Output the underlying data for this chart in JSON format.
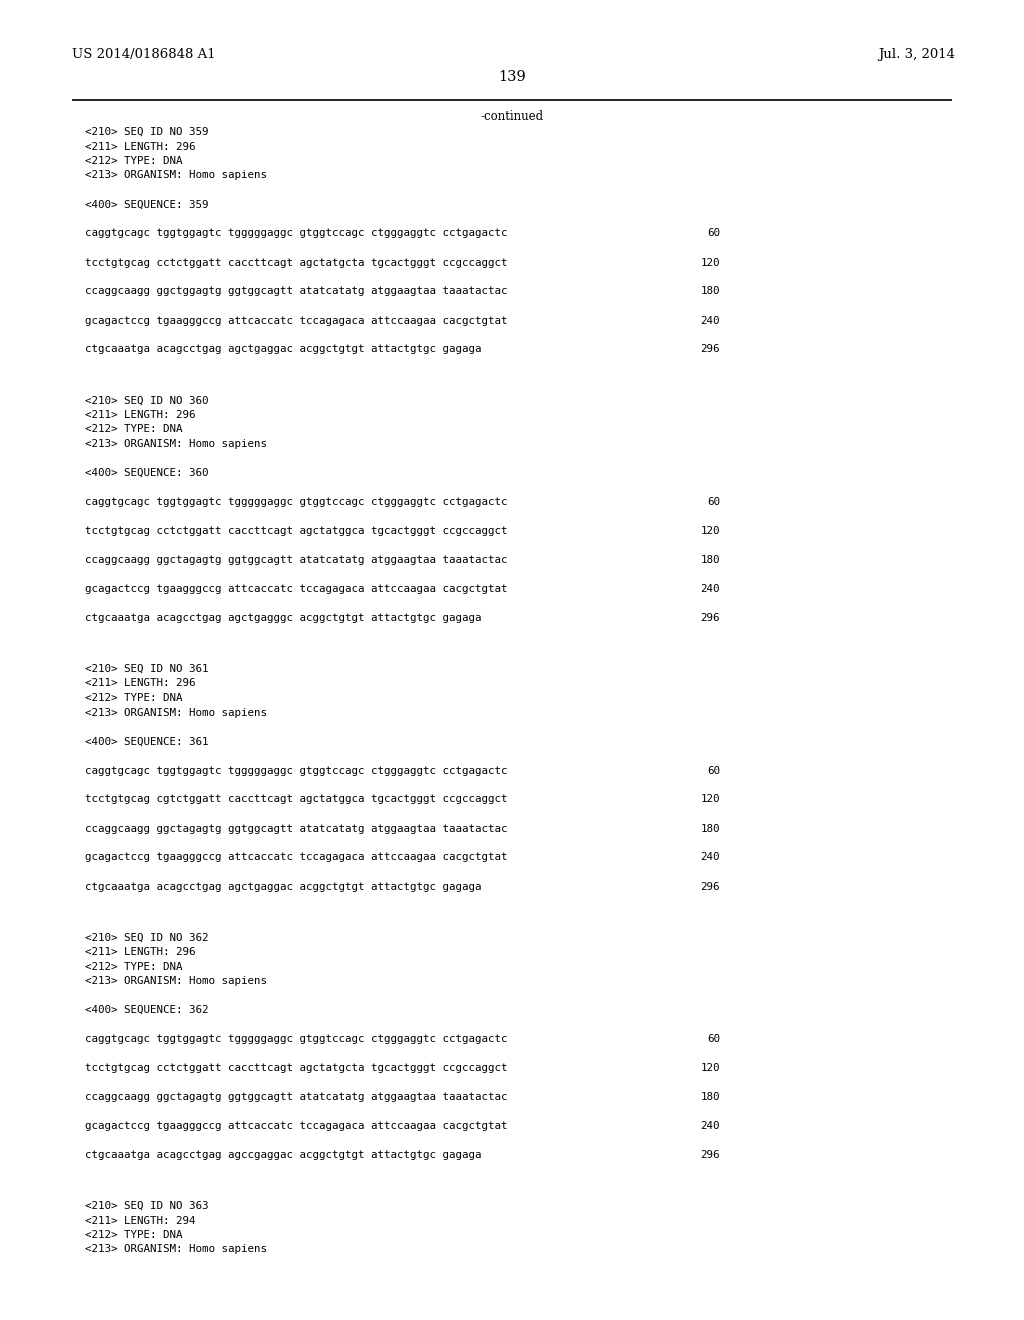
{
  "header_left": "US 2014/0186848 A1",
  "header_right": "Jul. 3, 2014",
  "page_number": "139",
  "continued_label": "-continued",
  "background_color": "#ffffff",
  "text_color": "#000000",
  "font_size_header": 9.5,
  "font_size_page": 10.5,
  "font_size_body": 7.8,
  "sections": [
    {
      "meta": [
        "<210> SEQ ID NO 359",
        "<211> LENGTH: 296",
        "<212> TYPE: DNA",
        "<213> ORGANISM: Homo sapiens"
      ],
      "seq_label": "<400> SEQUENCE: 359",
      "sequence_lines": [
        [
          "caggtgcagc tggtggagtc tgggggaggc gtggtccagc ctgggaggtc cctgagactc",
          "60"
        ],
        [
          "tcctgtgcag cctctggatt caccttcagt agctatgcta tgcactgggt ccgccaggct",
          "120"
        ],
        [
          "ccaggcaagg ggctggagtg ggtggcagtt atatcatatg atggaagtaa taaatactac",
          "180"
        ],
        [
          "gcagactccg tgaagggccg attcaccatc tccagagaca attccaagaa cacgctgtat",
          "240"
        ],
        [
          "ctgcaaatga acagcctgag agctgaggac acggctgtgt attactgtgc gagaga",
          "296"
        ]
      ]
    },
    {
      "meta": [
        "<210> SEQ ID NO 360",
        "<211> LENGTH: 296",
        "<212> TYPE: DNA",
        "<213> ORGANISM: Homo sapiens"
      ],
      "seq_label": "<400> SEQUENCE: 360",
      "sequence_lines": [
        [
          "caggtgcagc tggtggagtc tgggggaggc gtggtccagc ctgggaggtc cctgagactc",
          "60"
        ],
        [
          "tcctgtgcag cctctggatt caccttcagt agctatggca tgcactgggt ccgccaggct",
          "120"
        ],
        [
          "ccaggcaagg ggctagagtg ggtggcagtt atatcatatg atggaagtaa taaatactac",
          "180"
        ],
        [
          "gcagactccg tgaagggccg attcaccatc tccagagaca attccaagaa cacgctgtat",
          "240"
        ],
        [
          "ctgcaaatga acagcctgag agctgagggc acggctgtgt attactgtgc gagaga",
          "296"
        ]
      ]
    },
    {
      "meta": [
        "<210> SEQ ID NO 361",
        "<211> LENGTH: 296",
        "<212> TYPE: DNA",
        "<213> ORGANISM: Homo sapiens"
      ],
      "seq_label": "<400> SEQUENCE: 361",
      "sequence_lines": [
        [
          "caggtgcagc tggtggagtc tgggggaggc gtggtccagc ctgggaggtc cctgagactc",
          "60"
        ],
        [
          "tcctgtgcag cgtctggatt caccttcagt agctatggca tgcactgggt ccgccaggct",
          "120"
        ],
        [
          "ccaggcaagg ggctagagtg ggtggcagtt atatcatatg atggaagtaa taaatactac",
          "180"
        ],
        [
          "gcagactccg tgaagggccg attcaccatc tccagagaca attccaagaa cacgctgtat",
          "240"
        ],
        [
          "ctgcaaatga acagcctgag agctgaggac acggctgtgt attactgtgc gagaga",
          "296"
        ]
      ]
    },
    {
      "meta": [
        "<210> SEQ ID NO 362",
        "<211> LENGTH: 296",
        "<212> TYPE: DNA",
        "<213> ORGANISM: Homo sapiens"
      ],
      "seq_label": "<400> SEQUENCE: 362",
      "sequence_lines": [
        [
          "caggtgcagc tggtggagtc tgggggaggc gtggtccagc ctgggaggtc cctgagactc",
          "60"
        ],
        [
          "tcctgtgcag cctctggatt caccttcagt agctatgcta tgcactgggt ccgccaggct",
          "120"
        ],
        [
          "ccaggcaagg ggctagagtg ggtggcagtt atatcatatg atggaagtaa taaatactac",
          "180"
        ],
        [
          "gcagactccg tgaagggccg attcaccatc tccagagaca attccaagaa cacgctgtat",
          "240"
        ],
        [
          "ctgcaaatga acagcctgag agccgaggac acggctgtgt attactgtgc gagaga",
          "296"
        ]
      ]
    },
    {
      "meta": [
        "<210> SEQ ID NO 363",
        "<211> LENGTH: 294",
        "<212> TYPE: DNA",
        "<213> ORGANISM: Homo sapiens"
      ],
      "seq_label": null,
      "sequence_lines": []
    }
  ]
}
